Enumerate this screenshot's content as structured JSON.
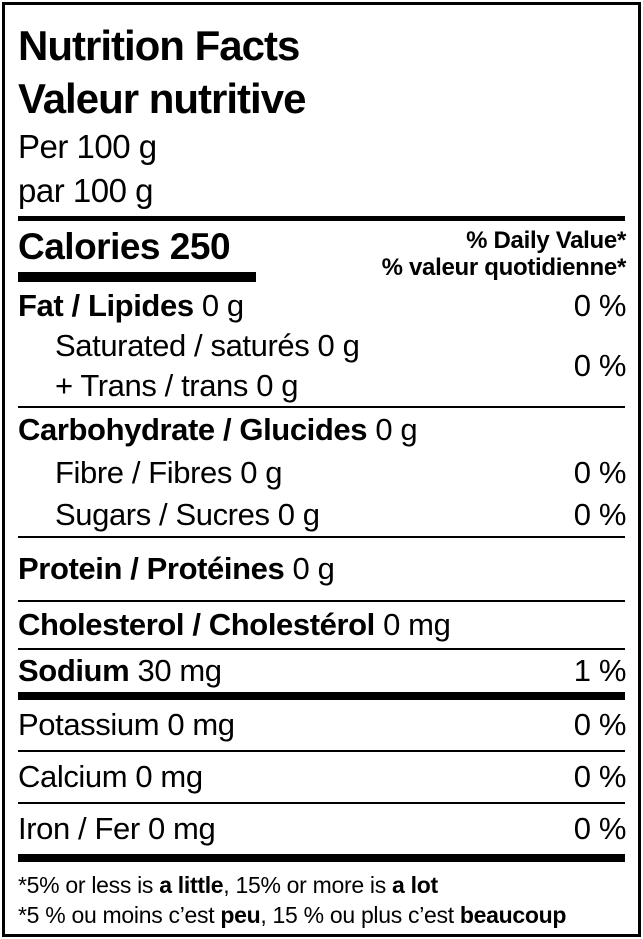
{
  "label": {
    "title_en": "Nutrition Facts",
    "title_fr": "Valeur nutritive",
    "serving_en": "Per 100 g",
    "serving_fr": "par 100 g",
    "calories_label": "Calories",
    "calories_value": "250",
    "daily_value_en": "% Daily Value*",
    "daily_value_fr": "% valeur quotidienne*",
    "rows": {
      "fat": {
        "name": "Fat / Lipides",
        "amount": "0 g",
        "dv": "0 %"
      },
      "saturated": {
        "line1": "Saturated / saturés 0 g",
        "line2": "+ Trans / trans 0 g",
        "dv": "0 %"
      },
      "carbohydrate": {
        "name": "Carbohydrate / Glucides",
        "amount": "0 g"
      },
      "fibre": {
        "name": "Fibre / Fibres 0 g",
        "dv": "0 %"
      },
      "sugars": {
        "name": "Sugars / Sucres 0 g",
        "dv": "0 %"
      },
      "protein": {
        "name": "Protein / Protéines",
        "amount": "0 g"
      },
      "cholesterol": {
        "name": "Cholesterol / Cholestérol",
        "amount": "0 mg"
      },
      "sodium": {
        "name": "Sodium",
        "amount": "30 mg",
        "dv": "1 %"
      },
      "potassium": {
        "name": "Potassium 0 mg",
        "dv": "0 %"
      },
      "calcium": {
        "name": "Calcium 0 mg",
        "dv": "0 %"
      },
      "iron": {
        "name": "Iron / Fer 0 mg",
        "dv": "0 %"
      }
    },
    "footnote": {
      "en": {
        "pre": "*5% or less is ",
        "bold1": "a little",
        "mid": ", 15% or more is ",
        "bold2": "a lot"
      },
      "fr": {
        "pre": "*5 % ou moins c’est ",
        "bold1": "peu",
        "mid": ", 15 % ou plus c’est ",
        "bold2": "beaucoup"
      }
    },
    "colors": {
      "text": "#000000",
      "background": "#ffffff"
    }
  }
}
